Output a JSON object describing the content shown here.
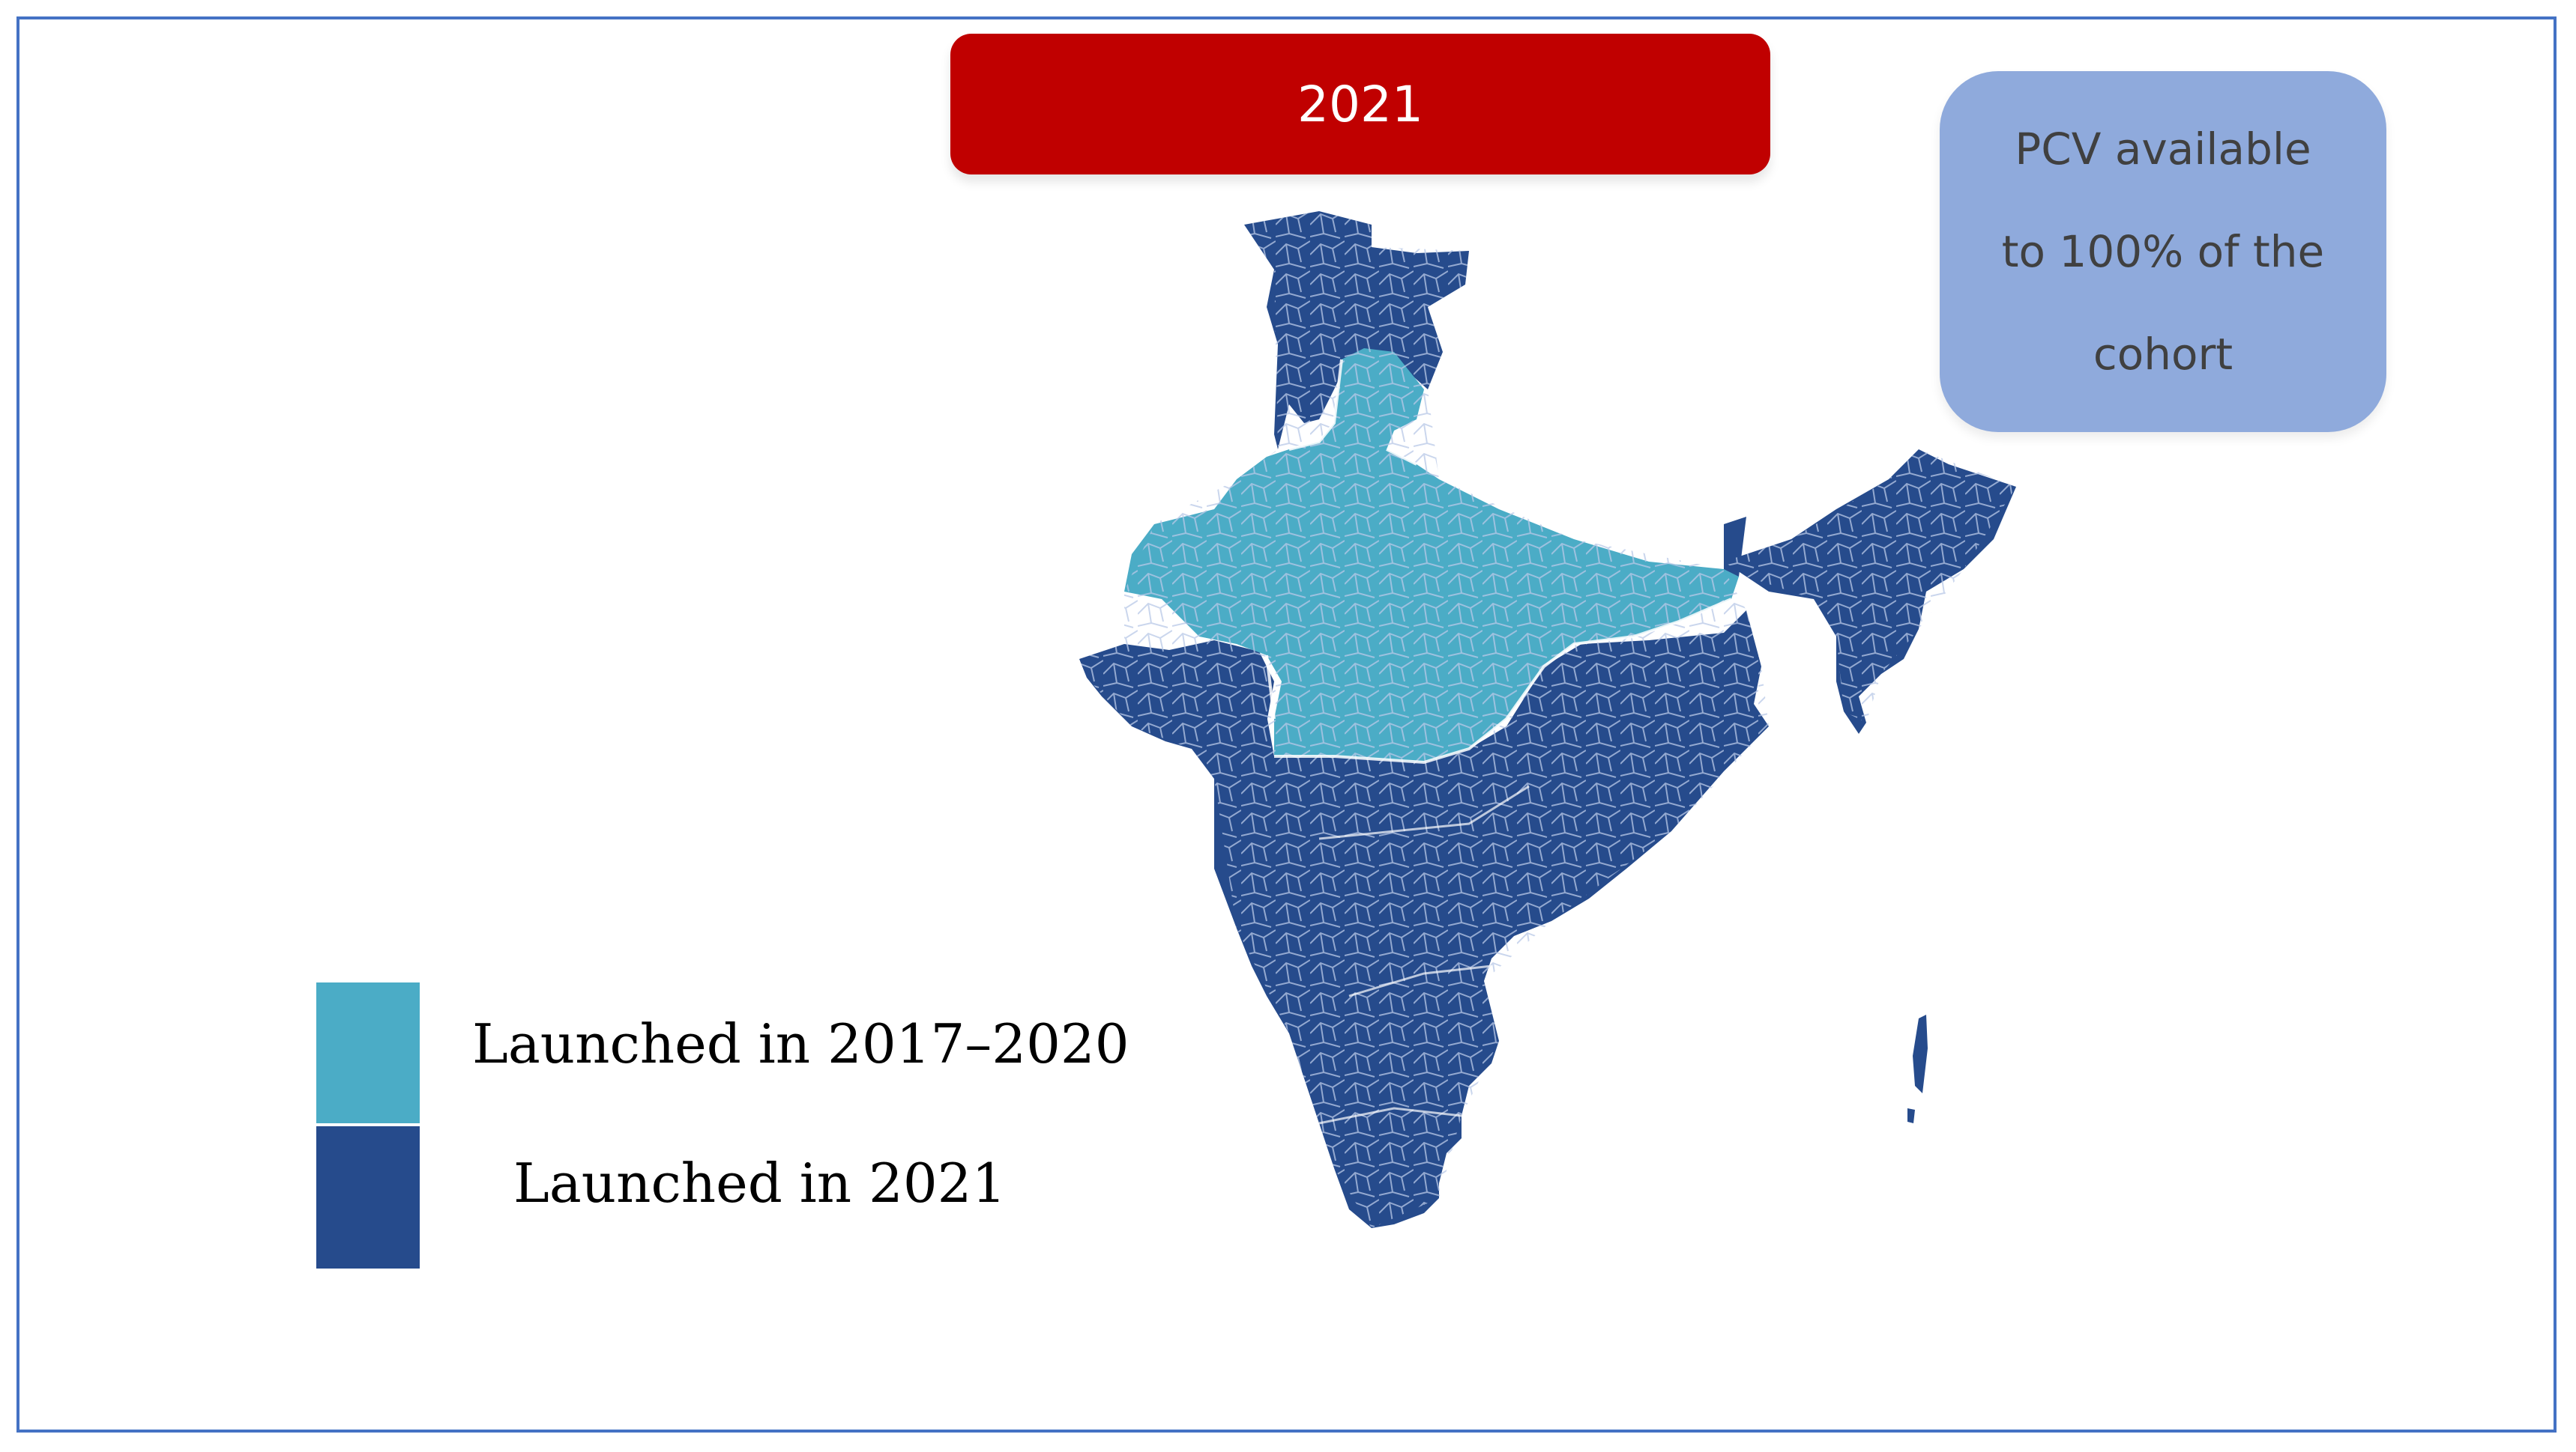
{
  "banner": {
    "year": "2021"
  },
  "info_card": {
    "lines": [
      "PCV available",
      "to 100% of the",
      "cohort"
    ]
  },
  "legend": [
    {
      "label": "Launched in 2017–2020",
      "color": "#4bacc6"
    },
    {
      "label": "Launched in 2021",
      "color": "#264b8c"
    }
  ],
  "map": {
    "region": "India",
    "color_early": "#4bacc6",
    "color_2021": "#264b8c",
    "border_color": "#b8c8e6"
  }
}
